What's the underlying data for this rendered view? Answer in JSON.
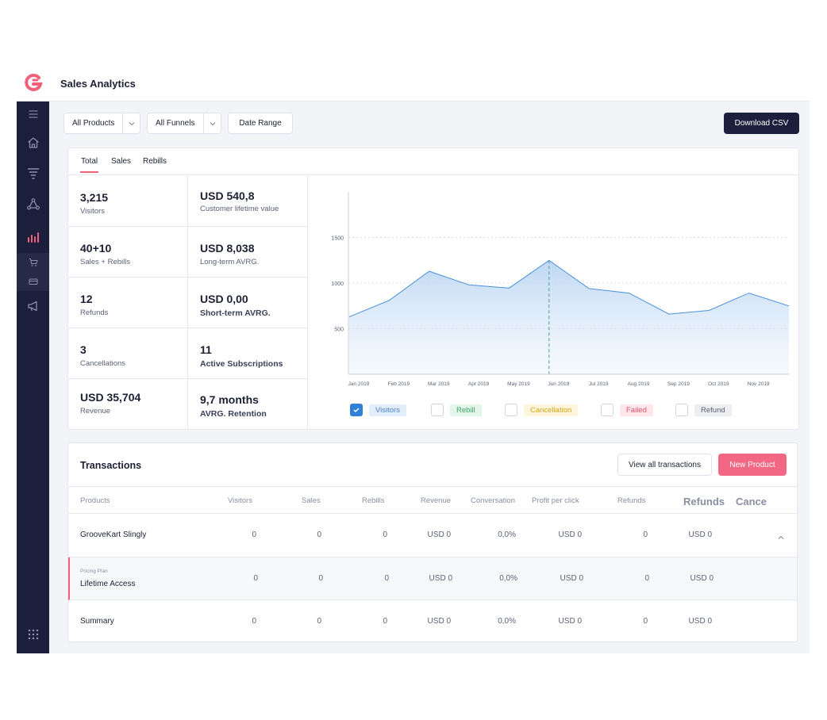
{
  "header": {
    "title": "Sales Analytics"
  },
  "colors": {
    "accent": "#f0607a",
    "sidebar": "#1c1f3b",
    "chart_line": "#4a90d9"
  },
  "sidebar": {
    "items": [
      {
        "icon": "menu-icon"
      },
      {
        "icon": "home-icon"
      },
      {
        "icon": "funnel-icon"
      },
      {
        "icon": "nodes-icon"
      },
      {
        "icon": "bar-chart-icon",
        "active": true
      },
      {
        "icon": "cart-icon"
      },
      {
        "icon": "card-icon"
      },
      {
        "icon": "megaphone-icon"
      },
      {
        "icon": "grid-icon"
      }
    ]
  },
  "filters": {
    "products_label": "All Products",
    "funnels_label": "All Funnels",
    "date_range_label": "Date Range",
    "download_label": "Download CSV"
  },
  "tabs": [
    "Total",
    "Sales",
    "Rebills"
  ],
  "stats": [
    {
      "value": "3,215",
      "label": "Visitors"
    },
    {
      "value": "USD 540,8",
      "label": "Customer lifetime value"
    },
    {
      "value": "40+10",
      "label": "Sales + Rebills"
    },
    {
      "value": "USD 8,038",
      "label": "Long-term AVRG."
    },
    {
      "value": "12",
      "label": "Refunds"
    },
    {
      "value": "USD 0,00",
      "label": "Short-term AVRG."
    },
    {
      "value": "3",
      "label": "Cancellations"
    },
    {
      "value": "11",
      "label": "Active Subscriptions"
    },
    {
      "value": "USD 35,704",
      "label": "Revenue"
    },
    {
      "value": "9,7 months",
      "label": "AVRG. Retention"
    }
  ],
  "chart_data": {
    "type": "area",
    "x": [
      "Jan 2019",
      "Feb 2019",
      "Mar 2019",
      "Apr 2019",
      "May 2019",
      "Jun 2019",
      "Jul 2019",
      "Aug 2019",
      "Sep 2019",
      "Oct 2019",
      "Nov 2019",
      ""
    ],
    "series": [
      {
        "name": "Visitors",
        "values": [
          630,
          810,
          1130,
          980,
          945,
          1250,
          940,
          890,
          660,
          700,
          890,
          750
        ]
      }
    ],
    "yticks": [
      500,
      1000,
      1500
    ],
    "ylim": [
      0,
      2000
    ],
    "highlight_index": 5,
    "grid": true
  },
  "legend": [
    {
      "label": "Visitors",
      "checked": true
    },
    {
      "label": "Rebill",
      "checked": false
    },
    {
      "label": "Cancellation",
      "checked": false
    },
    {
      "label": "Failed",
      "checked": false
    },
    {
      "label": "Refund",
      "checked": false
    }
  ],
  "transactions": {
    "title": "Transactions",
    "view_all_label": "View all transactions",
    "new_product_label": "New Product",
    "columns": [
      "Products",
      "Visitors",
      "Sales",
      "Rebills",
      "Revenue",
      "Conversation",
      "Profit per click",
      "Refunds",
      "Refunds",
      "Cance"
    ],
    "rows": [
      {
        "product": "GrooveKart Slingly",
        "sub": "",
        "cells": [
          "0",
          "0",
          "0",
          "USD 0",
          "0,0%",
          "USD 0",
          "0",
          "USD 0"
        ]
      },
      {
        "product": "Lifetime Access",
        "sub": "Pricing Plan",
        "cells": [
          "0",
          "0",
          "0",
          "USD 0",
          "0,0%",
          "USD 0",
          "0",
          "USD 0"
        ]
      },
      {
        "product": "Summary",
        "sub": "",
        "cells": [
          "0",
          "0",
          "0",
          "USD 0",
          "0,0%",
          "USD 0",
          "0",
          "USD 0"
        ]
      }
    ]
  }
}
